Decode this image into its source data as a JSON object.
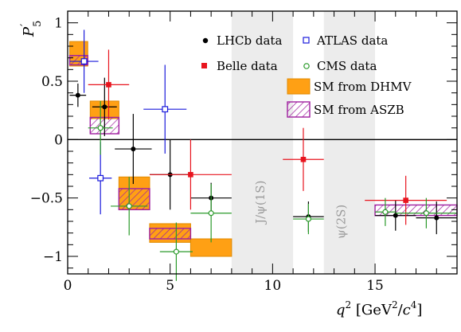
{
  "chart_data": {
    "type": "scatter",
    "xlabel": {
      "q": "q",
      "sup": "2",
      "unit": " [GeV",
      "unit_sup": "2",
      "slash": "/",
      "c": "c",
      "c_sup": "4",
      "close": "]"
    },
    "ylabel": {
      "main": "P",
      "prime": "′",
      "sub": "5"
    },
    "xlim": [
      0,
      19
    ],
    "ylim": [
      -1.15,
      1.1
    ],
    "xticks": [
      "0",
      "5",
      "10",
      "15"
    ],
    "yticks": [
      "−1",
      "−0.5",
      "0",
      "0.5",
      "1"
    ],
    "xtick_values": [
      0,
      5,
      10,
      15
    ],
    "ytick_values": [
      -1,
      -0.5,
      0,
      0.5,
      1
    ],
    "zero_line": true,
    "vetoed_regions": [
      {
        "label": "J/ψ(1S)",
        "x0": 8.0,
        "x1": 11.0
      },
      {
        "label": "ψ(2S)",
        "x0": 12.5,
        "x1": 15.0
      }
    ],
    "legend": {
      "placement": "top-right",
      "entries": [
        {
          "key": "lhcb",
          "label": "LHCb data"
        },
        {
          "key": "atlas",
          "label": "ATLAS data"
        },
        {
          "key": "belle",
          "label": "Belle data"
        },
        {
          "key": "cms",
          "label": "CMS data"
        },
        {
          "key": "dhmv",
          "label": "SM from DHMV"
        },
        {
          "key": "aszb",
          "label": "SM from ASZB"
        }
      ]
    },
    "colors": {
      "lhcb": "#000000",
      "atlas": "#1a1adb",
      "belle": "#e8141e",
      "cms": "#2a9a2a",
      "dhmv_fill": "#ffa014",
      "dhmv_edge": "#e08a00",
      "aszb_edge": "#a020a0",
      "veto": "#ececec"
    },
    "series": [
      {
        "key": "lhcb",
        "marker": "filled-circle",
        "points": [
          {
            "x": 0.5,
            "y": 0.38,
            "xerr": 0.4,
            "yerr": 0.1
          },
          {
            "x": 1.8,
            "y": 0.28,
            "xerr": 0.6,
            "yerr": 0.25
          },
          {
            "x": 3.2,
            "y": -0.08,
            "xerr": 0.9,
            "yerr": 0.3
          },
          {
            "x": 5.0,
            "y": -0.3,
            "xerr": 1.0,
            "yerr": 0.3
          },
          {
            "x": 7.0,
            "y": -0.5,
            "xerr": 1.0,
            "yerr": 0.13
          },
          {
            "x": 11.75,
            "y": -0.66,
            "xerr": 0.75,
            "yerr": 0.13
          },
          {
            "x": 16.0,
            "y": -0.65,
            "xerr": 1.0,
            "yerr": 0.13
          },
          {
            "x": 18.0,
            "y": -0.67,
            "xerr": 1.0,
            "yerr": 0.14
          }
        ]
      },
      {
        "key": "atlas",
        "marker": "open-square",
        "points": [
          {
            "x": 0.8,
            "y": 0.67,
            "xerr": 0.7,
            "yerr": 0.27
          },
          {
            "x": 1.6,
            "y": -0.33,
            "xerr": 0.55,
            "yerr": 0.31
          },
          {
            "x": 4.75,
            "y": 0.26,
            "xerr": 1.05,
            "yerr": 0.38
          }
        ]
      },
      {
        "key": "belle",
        "marker": "filled-square",
        "points": [
          {
            "x": 2.0,
            "y": 0.47,
            "xerr": 1.0,
            "yerr": 0.3
          },
          {
            "x": 6.0,
            "y": -0.3,
            "xerr": 2.0,
            "yerr": 0.3
          },
          {
            "x": 11.5,
            "y": -0.17,
            "xerr": 1.0,
            "yerr": 0.27
          },
          {
            "x": 16.5,
            "y": -0.52,
            "xerr": 2.0,
            "yerr": 0.21
          }
        ]
      },
      {
        "key": "cms",
        "marker": "open-circle",
        "points": [
          {
            "x": 1.6,
            "y": 0.1,
            "xerr": 0.6,
            "yerr": 0.23
          },
          {
            "x": 3.0,
            "y": -0.57,
            "xerr": 0.9,
            "yerr": 0.25
          },
          {
            "x": 5.3,
            "y": -0.96,
            "xerr": 0.8,
            "yerr": 0.25
          },
          {
            "x": 7.0,
            "y": -0.63,
            "xerr": 1.0,
            "yerr": 0.25
          },
          {
            "x": 11.75,
            "y": -0.68,
            "xerr": 0.75,
            "yerr": 0.13
          },
          {
            "x": 15.5,
            "y": -0.62,
            "xerr": 0.5,
            "yerr": 0.12
          },
          {
            "x": 17.5,
            "y": -0.63,
            "xerr": 1.5,
            "yerr": 0.13
          }
        ]
      }
    ],
    "sm_dhmv_bins": [
      {
        "x0": 0.1,
        "x1": 0.98,
        "y0": 0.63,
        "y1": 0.84
      },
      {
        "x0": 1.1,
        "x1": 2.5,
        "y0": 0.18,
        "y1": 0.33
      },
      {
        "x0": 2.5,
        "x1": 4.0,
        "y0": -0.6,
        "y1": -0.32
      },
      {
        "x0": 4.0,
        "x1": 6.0,
        "y0": -0.88,
        "y1": -0.72
      },
      {
        "x0": 6.0,
        "x1": 8.0,
        "y0": -1.0,
        "y1": -0.85
      }
    ],
    "sm_aszb_bins": [
      {
        "x0": 0.1,
        "x1": 0.98,
        "y0": 0.64,
        "y1": 0.72
      },
      {
        "x0": 1.1,
        "x1": 2.5,
        "y0": 0.05,
        "y1": 0.19
      },
      {
        "x0": 2.5,
        "x1": 4.0,
        "y0": -0.6,
        "y1": -0.42
      },
      {
        "x0": 4.0,
        "x1": 6.0,
        "y0": -0.85,
        "y1": -0.76
      },
      {
        "x0": 15.0,
        "x1": 19.0,
        "y0": -0.65,
        "y1": -0.56
      }
    ]
  }
}
